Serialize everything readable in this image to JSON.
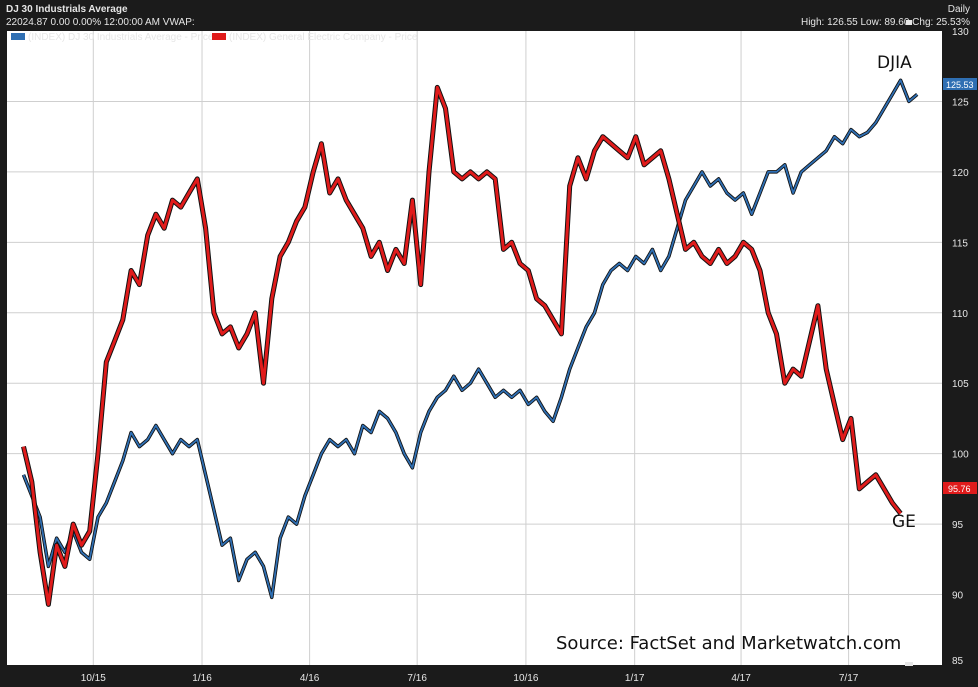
{
  "header": {
    "title": "DJ 30 Industrials Average",
    "info": "22024.87 0.00 0.00% 12:00:00 AM VWAP:",
    "period": "Daily",
    "stats": "High: 126.55 Low: 89.60 Chg: 25.53%"
  },
  "legend": [
    {
      "label": "(INDEX) DJ 30 Industrials Average - Price",
      "color": "#2f6fb3"
    },
    {
      "label": "(INDEX) General Electric Company - Price",
      "color": "#e01b1b"
    }
  ],
  "annotations": {
    "djia": "DJIA",
    "ge": "GE"
  },
  "source_note": "Source: FactSet and Marketwatch.com",
  "last_values": {
    "djia": "125.53",
    "ge": "95.76"
  },
  "colors": {
    "djia": "#2f6fb3",
    "ge": "#e01b1b",
    "frame": "#1b1b1b",
    "plot_bg": "#ffffff"
  },
  "chart_data": {
    "type": "line",
    "title": "DJ 30 Industrials Average",
    "xlabel": "",
    "ylabel": "",
    "ylim": [
      85,
      130
    ],
    "yticks": [
      85,
      90,
      95,
      100,
      105,
      110,
      115,
      120,
      125,
      130
    ],
    "x_tick_labels": [
      "10/15",
      "1/16",
      "4/16",
      "7/16",
      "10/16",
      "1/17",
      "4/17",
      "7/17"
    ],
    "grid": true,
    "series": [
      {
        "name": "(INDEX) DJ 30 Industrials Average - Price",
        "points": [
          [
            "2015-08-03",
            98.5
          ],
          [
            "2015-08-10",
            97.0
          ],
          [
            "2015-08-17",
            95.5
          ],
          [
            "2015-08-24",
            92.0
          ],
          [
            "2015-08-31",
            94.0
          ],
          [
            "2015-09-07",
            93.0
          ],
          [
            "2015-09-14",
            94.5
          ],
          [
            "2015-09-21",
            93.0
          ],
          [
            "2015-09-28",
            92.5
          ],
          [
            "2015-10-05",
            95.5
          ],
          [
            "2015-10-12",
            96.5
          ],
          [
            "2015-10-19",
            98.0
          ],
          [
            "2015-10-26",
            99.5
          ],
          [
            "2015-11-02",
            101.5
          ],
          [
            "2015-11-09",
            100.5
          ],
          [
            "2015-11-16",
            101.0
          ],
          [
            "2015-11-23",
            102.0
          ],
          [
            "2015-11-30",
            101.0
          ],
          [
            "2015-12-07",
            100.0
          ],
          [
            "2015-12-14",
            101.0
          ],
          [
            "2015-12-21",
            100.5
          ],
          [
            "2015-12-28",
            101.0
          ],
          [
            "2016-01-04",
            98.5
          ],
          [
            "2016-01-11",
            96.0
          ],
          [
            "2016-01-18",
            93.5
          ],
          [
            "2016-01-25",
            94.0
          ],
          [
            "2016-02-01",
            91.0
          ],
          [
            "2016-02-08",
            92.5
          ],
          [
            "2016-02-15",
            93.0
          ],
          [
            "2016-02-22",
            92.0
          ],
          [
            "2016-02-29",
            89.8
          ],
          [
            "2016-03-07",
            94.0
          ],
          [
            "2016-03-14",
            95.5
          ],
          [
            "2016-03-21",
            95.0
          ],
          [
            "2016-03-28",
            97.0
          ],
          [
            "2016-04-04",
            98.5
          ],
          [
            "2016-04-11",
            100.0
          ],
          [
            "2016-04-18",
            101.0
          ],
          [
            "2016-04-25",
            100.5
          ],
          [
            "2016-05-02",
            101.0
          ],
          [
            "2016-05-09",
            100.0
          ],
          [
            "2016-05-16",
            102.0
          ],
          [
            "2016-05-23",
            101.5
          ],
          [
            "2016-05-30",
            103.0
          ],
          [
            "2016-06-06",
            102.5
          ],
          [
            "2016-06-13",
            101.5
          ],
          [
            "2016-06-20",
            100.0
          ],
          [
            "2016-06-27",
            99.0
          ],
          [
            "2016-07-04",
            101.5
          ],
          [
            "2016-07-11",
            103.0
          ],
          [
            "2016-07-18",
            104.0
          ],
          [
            "2016-07-25",
            104.5
          ],
          [
            "2016-08-01",
            105.5
          ],
          [
            "2016-08-08",
            104.5
          ],
          [
            "2016-08-15",
            105.0
          ],
          [
            "2016-08-22",
            106.0
          ],
          [
            "2016-08-29",
            105.0
          ],
          [
            "2016-09-05",
            104.0
          ],
          [
            "2016-09-12",
            104.5
          ],
          [
            "2016-09-19",
            104.0
          ],
          [
            "2016-09-26",
            104.5
          ],
          [
            "2016-10-03",
            103.5
          ],
          [
            "2016-10-10",
            104.0
          ],
          [
            "2016-10-17",
            103.0
          ],
          [
            "2016-10-24",
            102.3
          ],
          [
            "2016-10-31",
            104.0
          ],
          [
            "2016-11-07",
            106.0
          ],
          [
            "2016-11-14",
            107.5
          ],
          [
            "2016-11-21",
            109.0
          ],
          [
            "2016-11-28",
            110.0
          ],
          [
            "2016-12-05",
            112.0
          ],
          [
            "2016-12-12",
            113.0
          ],
          [
            "2016-12-19",
            113.5
          ],
          [
            "2016-12-26",
            113.0
          ],
          [
            "2017-01-02",
            114.0
          ],
          [
            "2017-01-09",
            113.5
          ],
          [
            "2017-01-16",
            114.5
          ],
          [
            "2017-01-23",
            113.0
          ],
          [
            "2017-01-30",
            114.0
          ],
          [
            "2017-02-06",
            116.0
          ],
          [
            "2017-02-13",
            118.0
          ],
          [
            "2017-02-20",
            119.0
          ],
          [
            "2017-02-27",
            120.0
          ],
          [
            "2017-03-06",
            119.0
          ],
          [
            "2017-03-13",
            119.5
          ],
          [
            "2017-03-20",
            118.5
          ],
          [
            "2017-03-27",
            118.0
          ],
          [
            "2017-04-03",
            118.5
          ],
          [
            "2017-04-10",
            117.0
          ],
          [
            "2017-04-17",
            118.5
          ],
          [
            "2017-04-24",
            120.0
          ],
          [
            "2017-05-01",
            120.0
          ],
          [
            "2017-05-08",
            120.5
          ],
          [
            "2017-05-15",
            118.5
          ],
          [
            "2017-05-22",
            120.0
          ],
          [
            "2017-05-29",
            120.5
          ],
          [
            "2017-06-05",
            121.0
          ],
          [
            "2017-06-12",
            121.5
          ],
          [
            "2017-06-19",
            122.5
          ],
          [
            "2017-06-26",
            122.0
          ],
          [
            "2017-07-03",
            123.0
          ],
          [
            "2017-07-10",
            122.5
          ],
          [
            "2017-07-17",
            122.8
          ],
          [
            "2017-07-24",
            123.5
          ],
          [
            "2017-07-31",
            124.5
          ],
          [
            "2017-08-07",
            125.5
          ],
          [
            "2017-08-14",
            126.5
          ],
          [
            "2017-08-21",
            125.0
          ],
          [
            "2017-08-28",
            125.5
          ]
        ]
      },
      {
        "name": "(INDEX) General Electric Company - Price",
        "points": [
          [
            "2015-08-03",
            100.5
          ],
          [
            "2015-08-10",
            98.0
          ],
          [
            "2015-08-17",
            93.0
          ],
          [
            "2015-08-24",
            89.3
          ],
          [
            "2015-08-31",
            93.5
          ],
          [
            "2015-09-07",
            92.0
          ],
          [
            "2015-09-14",
            95.0
          ],
          [
            "2015-09-21",
            93.5
          ],
          [
            "2015-09-28",
            94.5
          ],
          [
            "2015-10-05",
            100.0
          ],
          [
            "2015-10-12",
            106.5
          ],
          [
            "2015-10-19",
            108.0
          ],
          [
            "2015-10-26",
            109.5
          ],
          [
            "2015-11-02",
            113.0
          ],
          [
            "2015-11-09",
            112.0
          ],
          [
            "2015-11-16",
            115.5
          ],
          [
            "2015-11-23",
            117.0
          ],
          [
            "2015-11-30",
            116.0
          ],
          [
            "2015-12-07",
            118.0
          ],
          [
            "2015-12-14",
            117.5
          ],
          [
            "2015-12-21",
            118.5
          ],
          [
            "2015-12-28",
            119.5
          ],
          [
            "2016-01-04",
            116.0
          ],
          [
            "2016-01-11",
            110.0
          ],
          [
            "2016-01-18",
            108.5
          ],
          [
            "2016-01-25",
            109.0
          ],
          [
            "2016-02-01",
            107.5
          ],
          [
            "2016-02-08",
            108.5
          ],
          [
            "2016-02-15",
            110.0
          ],
          [
            "2016-02-22",
            105.0
          ],
          [
            "2016-02-29",
            111.0
          ],
          [
            "2016-03-07",
            114.0
          ],
          [
            "2016-03-14",
            115.0
          ],
          [
            "2016-03-21",
            116.5
          ],
          [
            "2016-03-28",
            117.5
          ],
          [
            "2016-04-04",
            120.0
          ],
          [
            "2016-04-11",
            122.0
          ],
          [
            "2016-04-18",
            118.5
          ],
          [
            "2016-04-25",
            119.5
          ],
          [
            "2016-05-02",
            118.0
          ],
          [
            "2016-05-09",
            117.0
          ],
          [
            "2016-05-16",
            116.0
          ],
          [
            "2016-05-23",
            114.0
          ],
          [
            "2016-05-30",
            115.0
          ],
          [
            "2016-06-06",
            113.0
          ],
          [
            "2016-06-13",
            114.5
          ],
          [
            "2016-06-20",
            113.5
          ],
          [
            "2016-06-27",
            118.0
          ],
          [
            "2016-07-04",
            112.0
          ],
          [
            "2016-07-11",
            120.0
          ],
          [
            "2016-07-18",
            126.0
          ],
          [
            "2016-07-25",
            124.5
          ],
          [
            "2016-08-01",
            120.0
          ],
          [
            "2016-08-08",
            119.5
          ],
          [
            "2016-08-15",
            120.0
          ],
          [
            "2016-08-22",
            119.5
          ],
          [
            "2016-08-29",
            120.0
          ],
          [
            "2016-09-05",
            119.5
          ],
          [
            "2016-09-12",
            114.5
          ],
          [
            "2016-09-19",
            115.0
          ],
          [
            "2016-09-26",
            113.5
          ],
          [
            "2016-10-03",
            113.0
          ],
          [
            "2016-10-10",
            111.0
          ],
          [
            "2016-10-17",
            110.5
          ],
          [
            "2016-10-24",
            109.5
          ],
          [
            "2016-10-31",
            108.5
          ],
          [
            "2016-11-07",
            119.0
          ],
          [
            "2016-11-14",
            121.0
          ],
          [
            "2016-11-21",
            119.5
          ],
          [
            "2016-11-28",
            121.5
          ],
          [
            "2016-12-05",
            122.5
          ],
          [
            "2016-12-12",
            122.0
          ],
          [
            "2016-12-19",
            121.5
          ],
          [
            "2016-12-26",
            121.0
          ],
          [
            "2017-01-02",
            122.5
          ],
          [
            "2017-01-09",
            120.5
          ],
          [
            "2017-01-16",
            121.0
          ],
          [
            "2017-01-23",
            121.5
          ],
          [
            "2017-01-30",
            119.5
          ],
          [
            "2017-02-06",
            117.0
          ],
          [
            "2017-02-13",
            114.5
          ],
          [
            "2017-02-20",
            115.0
          ],
          [
            "2017-02-27",
            114.0
          ],
          [
            "2017-03-06",
            113.5
          ],
          [
            "2017-03-13",
            114.5
          ],
          [
            "2017-03-20",
            113.5
          ],
          [
            "2017-03-27",
            114.0
          ],
          [
            "2017-04-03",
            115.0
          ],
          [
            "2017-04-10",
            114.5
          ],
          [
            "2017-04-17",
            113.0
          ],
          [
            "2017-04-24",
            110.0
          ],
          [
            "2017-05-01",
            108.5
          ],
          [
            "2017-05-08",
            105.0
          ],
          [
            "2017-05-15",
            106.0
          ],
          [
            "2017-05-22",
            105.5
          ],
          [
            "2017-05-29",
            108.0
          ],
          [
            "2017-06-05",
            110.5
          ],
          [
            "2017-06-12",
            106.0
          ],
          [
            "2017-06-19",
            103.5
          ],
          [
            "2017-06-26",
            101.0
          ],
          [
            "2017-07-03",
            102.5
          ],
          [
            "2017-07-10",
            97.5
          ],
          [
            "2017-07-17",
            98.0
          ],
          [
            "2017-07-24",
            98.5
          ],
          [
            "2017-07-31",
            97.5
          ],
          [
            "2017-08-07",
            96.5
          ],
          [
            "2017-08-14",
            95.76
          ]
        ]
      }
    ]
  }
}
